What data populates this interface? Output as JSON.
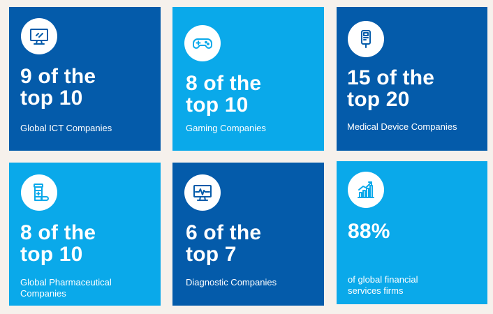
{
  "tiles": [
    {
      "icon": "monitor-icon",
      "stat_line1": "9 of the",
      "stat_line2": "top 10",
      "label": "Global ICT Companies"
    },
    {
      "icon": "gamepad-icon",
      "stat_line1": "8 of the",
      "stat_line2": "top 10",
      "label": "Gaming Companies"
    },
    {
      "icon": "medical-device-icon",
      "stat_line1": "15 of the",
      "stat_line2": "top 20",
      "label": "Medical Device Companies"
    },
    {
      "icon": "pill-bottle-icon",
      "stat_line1": "8 of the",
      "stat_line2": "top 10",
      "label": "Global Pharmaceutical Companies"
    },
    {
      "icon": "diagnostic-monitor-icon",
      "stat_line1": "6 of the",
      "stat_line2": "top 7",
      "label": "Diagnostic Companies"
    },
    {
      "icon": "growth-chart-icon",
      "stat_line1": "88%",
      "label": "of global financial services firms"
    }
  ],
  "colors": {
    "background": "#f6f1ec",
    "dark_tile": "#045baa",
    "light_tile": "#0aa9ea",
    "text": "#ffffff"
  }
}
